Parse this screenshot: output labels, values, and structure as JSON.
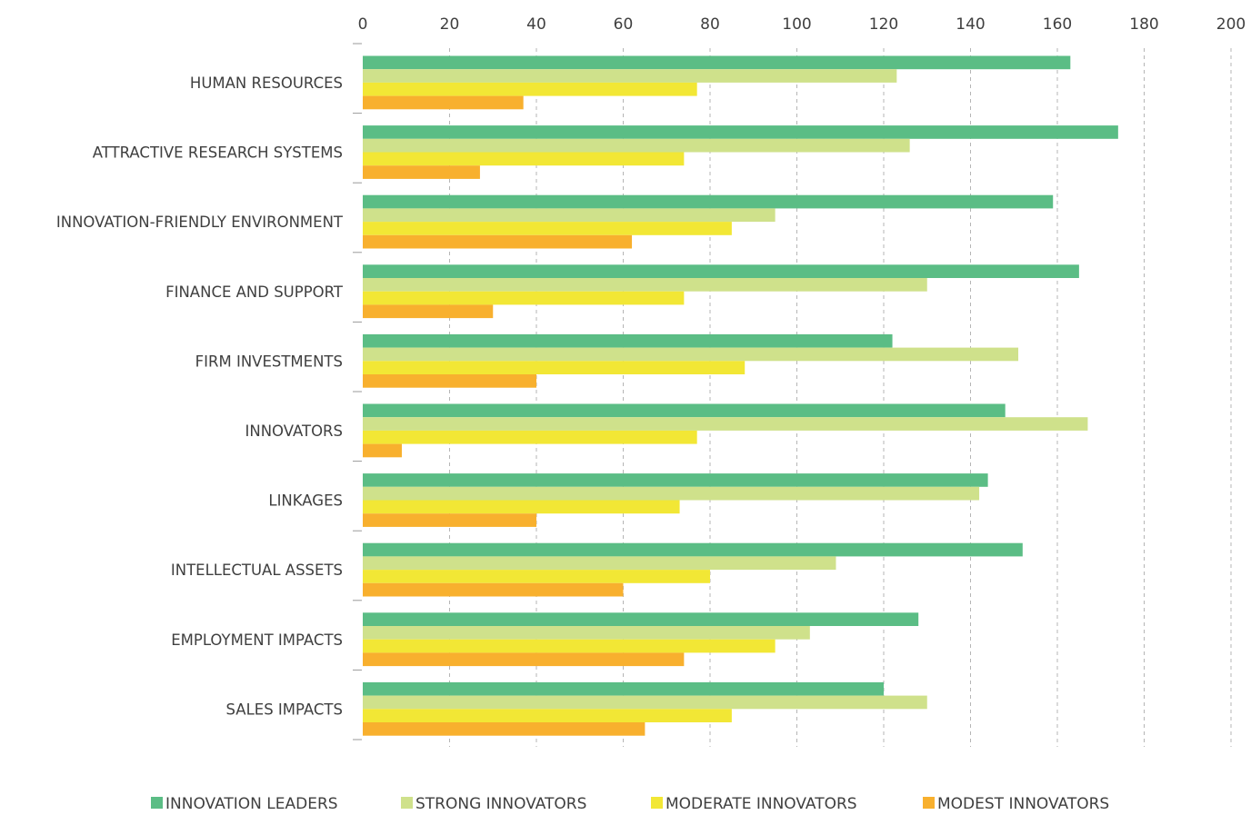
{
  "chart_data": {
    "type": "bar",
    "orientation": "horizontal",
    "categories": [
      "HUMAN RESOURCES",
      "ATTRACTIVE RESEARCH SYSTEMS",
      "INNOVATION-FRIENDLY ENVIRONMENT",
      "FINANCE AND SUPPORT",
      "FIRM INVESTMENTS",
      "INNOVATORS",
      "LINKAGES",
      "INTELLECTUAL ASSETS",
      "EMPLOYMENT IMPACTS",
      "SALES IMPACTS"
    ],
    "series": [
      {
        "name": "INNOVATION LEADERS",
        "color": "#5bbd85",
        "values": [
          163,
          174,
          159,
          165,
          122,
          148,
          144,
          152,
          128,
          120
        ]
      },
      {
        "name": "STRONG INNOVATORS",
        "color": "#cfe18b",
        "values": [
          123,
          126,
          95,
          130,
          151,
          167,
          142,
          109,
          103,
          130
        ]
      },
      {
        "name": "MODERATE INNOVATORS",
        "color": "#f2e735",
        "values": [
          77,
          74,
          85,
          74,
          88,
          77,
          73,
          80,
          95,
          85
        ]
      },
      {
        "name": "MODEST INNOVATORS",
        "color": "#f8b02e",
        "values": [
          37,
          27,
          62,
          30,
          40,
          9,
          40,
          60,
          74,
          65
        ]
      }
    ],
    "xticks": [
      "0",
      "20",
      "40",
      "60",
      "80",
      "100",
      "120",
      "140",
      "160",
      "180",
      "200"
    ],
    "xlim": [
      0,
      200
    ],
    "xaxis_position": "top",
    "grid": "vertical dashed",
    "legend_position": "bottom",
    "title": "",
    "xlabel": "",
    "ylabel": ""
  }
}
